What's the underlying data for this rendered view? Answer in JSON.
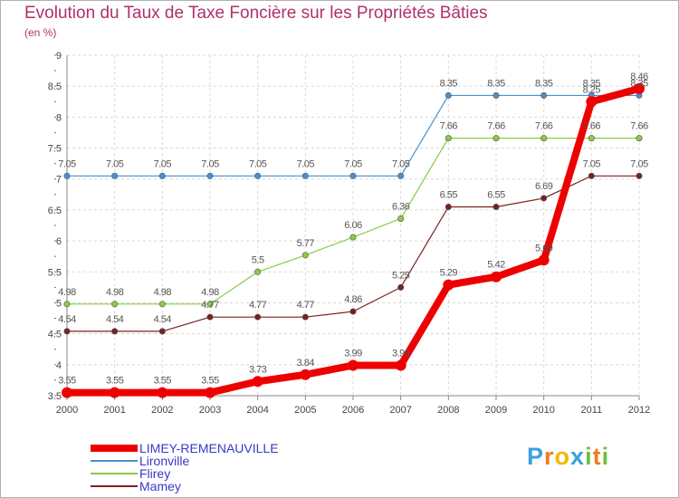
{
  "title": "Evolution du Taux de Taxe Foncière sur les Propriétés Bâties",
  "subtitle": "(en %)",
  "logo": {
    "letters": [
      "P",
      "r",
      "o",
      "x",
      "i",
      "t",
      "i"
    ],
    "colors": [
      "#3aa0e0",
      "#f07a20",
      "#f2b800",
      "#3aa0e0",
      "#6cc13a",
      "#f07a20",
      "#6cc13a"
    ]
  },
  "chart_data": {
    "type": "line",
    "title": "Evolution du Taux de Taxe Foncière sur les Propriétés Bâties",
    "ylabel": "(en %)",
    "x": [
      "2000",
      "2001",
      "2002",
      "2003",
      "2004",
      "2005",
      "2006",
      "2007",
      "2008",
      "2009",
      "2010",
      "2011",
      "2012"
    ],
    "ylim": [
      3.5,
      9
    ],
    "yticks": [
      "3.5",
      "4",
      "4.5",
      "5",
      "5.5",
      "6",
      "6.5",
      "7",
      "7.5",
      "8",
      "8.5",
      "9"
    ],
    "grid": true,
    "legend": "bottom-left",
    "series": [
      {
        "name": "LIMEY-REMENAUVILLE",
        "color": "#ee0000",
        "values": [
          3.55,
          3.55,
          3.55,
          3.55,
          3.73,
          3.84,
          3.99,
          3.99,
          5.29,
          5.42,
          5.69,
          8.25,
          8.46
        ],
        "labels": [
          "3.55",
          "3.55",
          "3.55",
          "3.55",
          "3.73",
          "3.84",
          "3.99",
          "3.99",
          "5.29",
          "5.42",
          "5.69",
          "8.25",
          "8.46"
        ]
      },
      {
        "name": "Lironville",
        "color": "#4a90d0",
        "values": [
          7.05,
          7.05,
          7.05,
          7.05,
          7.05,
          7.05,
          7.05,
          7.05,
          8.35,
          8.35,
          8.35,
          8.35,
          8.35
        ],
        "labels": [
          "7.05",
          "7.05",
          "7.05",
          "7.05",
          "7.05",
          "7.05",
          "7.05",
          "7.05",
          "8.35",
          "8.35",
          "8.35",
          "8.35",
          "8.35"
        ]
      },
      {
        "name": "Flirey",
        "color": "#88cc44",
        "values": [
          4.98,
          4.98,
          4.98,
          4.98,
          5.5,
          5.77,
          6.06,
          6.36,
          7.66,
          7.66,
          7.66,
          7.66,
          7.66
        ],
        "labels": [
          "4.98",
          "4.98",
          "4.98",
          "4.98",
          "5.5",
          "5.77",
          "6.06",
          "6.36",
          "7.66",
          "7.66",
          "7.66",
          "7.66",
          "7.66"
        ]
      },
      {
        "name": "Mamey",
        "color": "#7a2020",
        "values": [
          4.54,
          4.54,
          4.54,
          4.77,
          4.77,
          4.77,
          4.86,
          5.25,
          6.55,
          6.55,
          6.69,
          7.05,
          7.05
        ],
        "labels": [
          "4.54",
          "4.54",
          "4.54",
          "4.77",
          "4.77",
          "4.77",
          "4.86",
          "5.25",
          "6.55",
          "6.55",
          "6.69",
          "7.05",
          "7.05"
        ]
      }
    ]
  }
}
